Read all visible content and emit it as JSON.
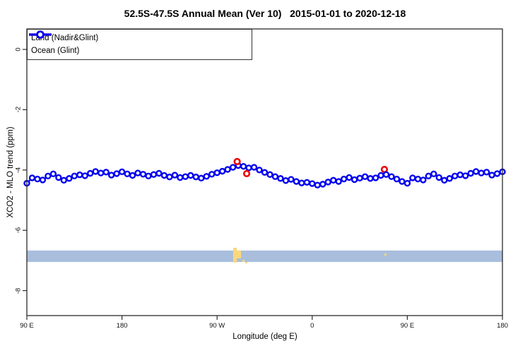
{
  "title": "52.5S-47.5S Annual Mean (Ver 10)   2015-01-01 to 2020-12-18",
  "legend": {
    "items": [
      {
        "label": "Land (Nadir&Glint)",
        "series": "land"
      },
      {
        "label": "Ocean (Glint)",
        "series": "ocean"
      }
    ]
  },
  "colors": {
    "land": "#ee0000",
    "ocean": "#0000ee",
    "strip_ocean": "#a9bedd",
    "strip_land": "#f9d77d",
    "axis": "#2b2b2b"
  },
  "axes": {
    "x": {
      "label": "Longitude (deg E)",
      "range": [
        90,
        540
      ],
      "ticks": [
        {
          "lon": 90,
          "label": "90 E"
        },
        {
          "lon": 180,
          "label": "180"
        },
        {
          "lon": 270,
          "label": "90 W"
        },
        {
          "lon": 360,
          "label": "0"
        },
        {
          "lon": 450,
          "label": "90 E"
        },
        {
          "lon": 540,
          "label": "180"
        }
      ]
    },
    "y": {
      "label": "XCO2 - MLO trend (ppm)",
      "range": [
        0.68,
        -8.83
      ],
      "ticks": [
        {
          "value": 0,
          "label": "0"
        },
        {
          "value": -2,
          "label": "-2"
        },
        {
          "value": -4,
          "label": "-4"
        },
        {
          "value": -6,
          "label": "-6"
        },
        {
          "value": -8,
          "label": "-8"
        }
      ]
    }
  },
  "chart_data": {
    "type": "line",
    "title": "52.5S-47.5S Annual Mean (Ver 10)   2015-01-01 to 2020-12-18",
    "xlabel": "Longitude (deg E)",
    "ylabel": "XCO2 - MLO trend (ppm)",
    "xlim": [
      90,
      540
    ],
    "ylim": [
      -8.83,
      0.68
    ],
    "x_note": "longitude axis wraps: 90E to 180 then 90W, 0, 90E, 180",
    "grid": false,
    "legend_position": "topleft",
    "series": [
      {
        "name": "Ocean (Glint)",
        "marker": "open-circle",
        "connected": true,
        "points": [
          [
            90,
            -4.44
          ],
          [
            95,
            -4.26
          ],
          [
            100,
            -4.3
          ],
          [
            105,
            -4.33
          ],
          [
            110,
            -4.2
          ],
          [
            115,
            -4.13
          ],
          [
            120,
            -4.25
          ],
          [
            125,
            -4.34
          ],
          [
            130,
            -4.28
          ],
          [
            135,
            -4.2
          ],
          [
            140,
            -4.16
          ],
          [
            145,
            -4.19
          ],
          [
            150,
            -4.11
          ],
          [
            155,
            -4.05
          ],
          [
            160,
            -4.1
          ],
          [
            165,
            -4.07
          ],
          [
            170,
            -4.17
          ],
          [
            175,
            -4.12
          ],
          [
            180,
            -4.06
          ],
          [
            185,
            -4.13
          ],
          [
            190,
            -4.18
          ],
          [
            195,
            -4.1
          ],
          [
            200,
            -4.14
          ],
          [
            205,
            -4.2
          ],
          [
            210,
            -4.15
          ],
          [
            215,
            -4.11
          ],
          [
            220,
            -4.18
          ],
          [
            225,
            -4.23
          ],
          [
            230,
            -4.17
          ],
          [
            235,
            -4.25
          ],
          [
            240,
            -4.22
          ],
          [
            245,
            -4.18
          ],
          [
            250,
            -4.23
          ],
          [
            255,
            -4.27
          ],
          [
            260,
            -4.21
          ],
          [
            265,
            -4.14
          ],
          [
            270,
            -4.09
          ],
          [
            275,
            -4.04
          ],
          [
            280,
            -3.98
          ],
          [
            285,
            -3.91
          ],
          [
            290,
            -3.85
          ],
          [
            295,
            -3.88
          ],
          [
            300,
            -3.93
          ],
          [
            305,
            -3.91
          ],
          [
            310,
            -4.0
          ],
          [
            315,
            -4.08
          ],
          [
            320,
            -4.15
          ],
          [
            325,
            -4.22
          ],
          [
            330,
            -4.28
          ],
          [
            335,
            -4.35
          ],
          [
            340,
            -4.31
          ],
          [
            345,
            -4.38
          ],
          [
            350,
            -4.43
          ],
          [
            355,
            -4.41
          ],
          [
            360,
            -4.45
          ],
          [
            365,
            -4.5
          ],
          [
            370,
            -4.47
          ],
          [
            375,
            -4.4
          ],
          [
            380,
            -4.34
          ],
          [
            385,
            -4.38
          ],
          [
            390,
            -4.3
          ],
          [
            395,
            -4.25
          ],
          [
            400,
            -4.32
          ],
          [
            405,
            -4.27
          ],
          [
            410,
            -4.22
          ],
          [
            415,
            -4.28
          ],
          [
            420,
            -4.26
          ],
          [
            425,
            -4.18
          ],
          [
            430,
            -4.15
          ],
          [
            435,
            -4.22
          ],
          [
            440,
            -4.3
          ],
          [
            445,
            -4.38
          ],
          [
            450,
            -4.44
          ],
          [
            455,
            -4.26
          ],
          [
            460,
            -4.3
          ],
          [
            465,
            -4.33
          ],
          [
            470,
            -4.2
          ],
          [
            475,
            -4.13
          ],
          [
            480,
            -4.25
          ],
          [
            485,
            -4.34
          ],
          [
            490,
            -4.28
          ],
          [
            495,
            -4.2
          ],
          [
            500,
            -4.16
          ],
          [
            505,
            -4.19
          ],
          [
            510,
            -4.11
          ],
          [
            515,
            -4.05
          ],
          [
            520,
            -4.1
          ],
          [
            525,
            -4.07
          ],
          [
            530,
            -4.17
          ],
          [
            535,
            -4.12
          ],
          [
            540,
            -4.06
          ]
        ]
      },
      {
        "name": "Land (Nadir&Glint)",
        "marker": "open-circle",
        "connected": false,
        "points_obj": [
          {
            "lon": 289,
            "value": -3.72,
            "front": true
          },
          {
            "lon": 298,
            "value": -4.12,
            "front": true
          },
          {
            "lon": 428.3,
            "value": -3.98,
            "front": false
          }
        ]
      }
    ],
    "map_strip": {
      "description": "latitude-band surface map: ocean band with land patches",
      "value_top": -6.67,
      "value_bottom": -7.05,
      "land_patches": [
        {
          "lon0": 285.2,
          "lon1": 288.6,
          "v0": -6.58,
          "v1": -7.07
        },
        {
          "lon0": 287.9,
          "lon1": 292.6,
          "v0": -6.67,
          "v1": -6.93
        },
        {
          "lon0": 294.0,
          "lon1": 296.0,
          "v0": -6.98,
          "v1": -7.05
        },
        {
          "lon0": 296.6,
          "lon1": 298.6,
          "v0": -7.05,
          "v1": -7.1
        },
        {
          "lon0": 428.3,
          "lon1": 430.3,
          "v0": -6.77,
          "v1": -6.84
        }
      ]
    }
  }
}
